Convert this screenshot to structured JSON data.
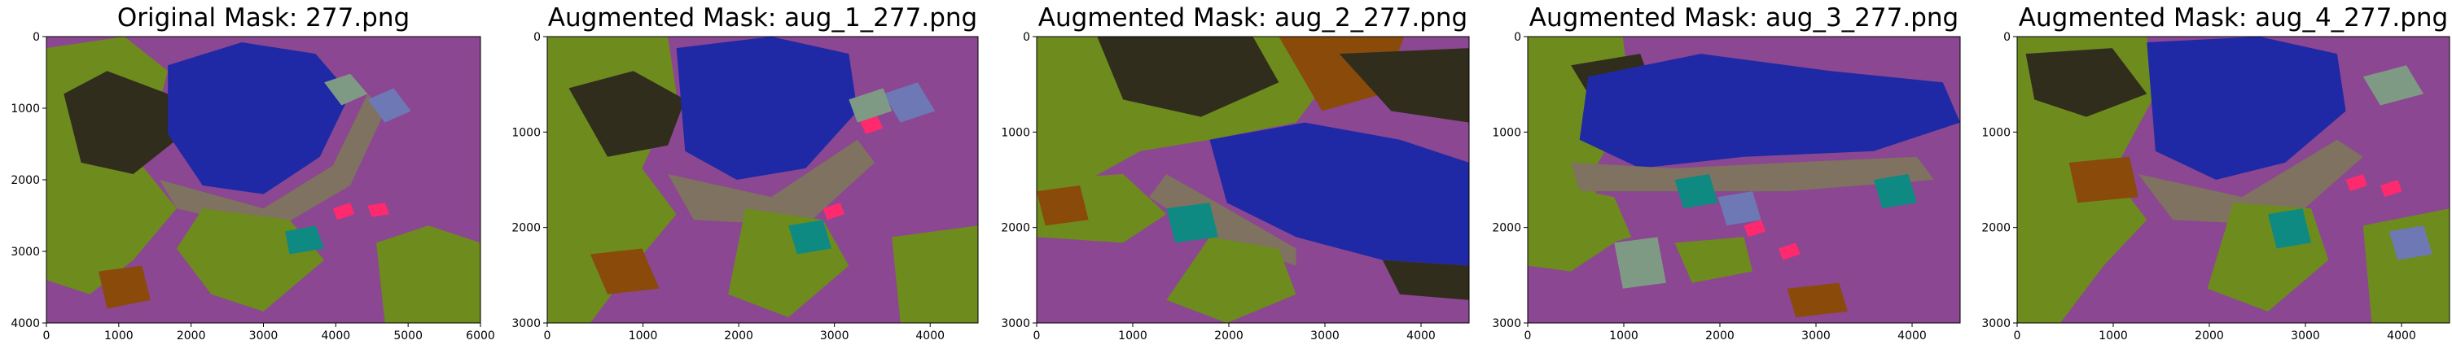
{
  "panels": [
    {
      "title": "Original Mask: 277.png",
      "x_ticks": [
        "0",
        "1000",
        "2000",
        "3000",
        "4000",
        "5000",
        "6000"
      ],
      "y_ticks": [
        "0",
        "1000",
        "2000",
        "3000",
        "4000"
      ]
    },
    {
      "title": "Augmented Mask: aug_1_277.png",
      "x_ticks": [
        "0",
        "1000",
        "2000",
        "3000",
        "4000"
      ],
      "y_ticks": [
        "0",
        "1000",
        "2000",
        "3000"
      ]
    },
    {
      "title": "Augmented Mask: aug_2_277.png",
      "x_ticks": [
        "0",
        "1000",
        "2000",
        "3000",
        "4000"
      ],
      "y_ticks": [
        "0",
        "1000",
        "2000",
        "3000"
      ]
    },
    {
      "title": "Augmented Mask: aug_3_277.png",
      "x_ticks": [
        "0",
        "1000",
        "2000",
        "3000",
        "4000"
      ],
      "y_ticks": [
        "0",
        "1000",
        "2000",
        "3000"
      ]
    },
    {
      "title": "Augmented Mask: aug_4_277.png",
      "x_ticks": [
        "0",
        "1000",
        "2000",
        "3000",
        "4000"
      ],
      "y_ticks": [
        "0",
        "1000",
        "2000",
        "3000"
      ]
    }
  ],
  "palette": {
    "purple": "#8b4791",
    "blue": "#1f29a6",
    "olive": "#6e8b1e",
    "dark": "#302d1d",
    "brown": "#8a4a0a",
    "taupe": "#7f7260",
    "teal": "#0e8a82",
    "pink": "#ff2a6e",
    "slate": "#6e78b4",
    "sage": "#7f9a84"
  }
}
